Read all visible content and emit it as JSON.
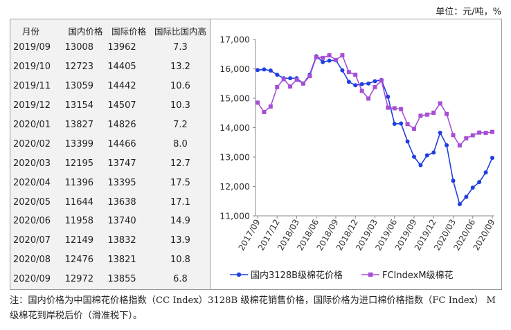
{
  "unit_label": "单位：元/吨，%",
  "table": {
    "headers": [
      "月份",
      "国内价格",
      "国际价格",
      "国际比国内高"
    ],
    "rows": [
      [
        "2019/09",
        "13008",
        "13962",
        "7.3"
      ],
      [
        "2019/10",
        "12723",
        "14405",
        "13.2"
      ],
      [
        "2019/11",
        "13059",
        "14442",
        "10.6"
      ],
      [
        "2019/12",
        "13154",
        "14507",
        "10.3"
      ],
      [
        "2020/01",
        "13827",
        "14826",
        "7.2"
      ],
      [
        "2020/02",
        "13399",
        "14466",
        "8.0"
      ],
      [
        "2020/03",
        "12195",
        "13747",
        "12.7"
      ],
      [
        "2020/04",
        "11396",
        "13395",
        "17.5"
      ],
      [
        "2020/05",
        "11644",
        "13638",
        "17.1"
      ],
      [
        "2020/06",
        "11958",
        "13740",
        "14.9"
      ],
      [
        "2020/07",
        "12149",
        "13832",
        "13.9"
      ],
      [
        "2020/08",
        "12476",
        "13821",
        "10.8"
      ],
      [
        "2020/09",
        "12972",
        "13855",
        "6.8"
      ]
    ]
  },
  "chart_data": {
    "type": "line",
    "xlabel": "",
    "ylabel": "",
    "ylim": [
      11000,
      17000
    ],
    "yticks": [
      "11,000",
      "12,000",
      "13,000",
      "14,000",
      "15,000",
      "16,000",
      "17,000"
    ],
    "x": [
      "2017/09",
      "2017/10",
      "2017/11",
      "2017/12",
      "2018/01",
      "2018/02",
      "2018/03",
      "2018/04",
      "2018/05",
      "2018/06",
      "2018/07",
      "2018/08",
      "2018/09",
      "2018/10",
      "2018/11",
      "2018/12",
      "2019/01",
      "2019/02",
      "2019/03",
      "2019/04",
      "2019/05",
      "2019/06",
      "2019/07",
      "2019/08",
      "2019/09",
      "2019/10",
      "2019/11",
      "2019/12",
      "2020/01",
      "2020/02",
      "2020/03",
      "2020/04",
      "2020/05",
      "2020/06",
      "2020/07",
      "2020/08",
      "2020/09"
    ],
    "xtick_labels": [
      "2017/09",
      "2017/12",
      "2018/03",
      "2018/06",
      "2018/09",
      "2018/12",
      "2019/03",
      "2019/06",
      "2019/09",
      "2019/12",
      "2020/03",
      "2020/06",
      "2020/09"
    ],
    "grid": false,
    "legend_position": "bottom",
    "series": [
      {
        "name": "国内3128B级棉花价格",
        "color": "#1f3fe0",
        "marker": "circle",
        "values": [
          15960,
          15980,
          15940,
          15800,
          15680,
          15680,
          15680,
          15500,
          15800,
          16430,
          16230,
          16280,
          16290,
          15950,
          15560,
          15440,
          15480,
          15500,
          15580,
          15620,
          15050,
          14130,
          14140,
          13530,
          13008,
          12723,
          13059,
          13154,
          13827,
          13399,
          12195,
          11396,
          11644,
          11958,
          12149,
          12476,
          12972
        ]
      },
      {
        "name": "FCIndexM级棉花",
        "color": "#a64fd6",
        "marker": "square",
        "values": [
          14850,
          14530,
          14720,
          15380,
          15650,
          15400,
          15630,
          15500,
          15750,
          16400,
          16370,
          16460,
          16300,
          16460,
          15890,
          15800,
          15250,
          14990,
          15380,
          15600,
          14680,
          14660,
          14630,
          14120,
          13962,
          14405,
          14442,
          14507,
          14826,
          14466,
          13747,
          13395,
          13638,
          13740,
          13832,
          13821,
          13855
        ]
      }
    ]
  },
  "note": "注：国内价格为中国棉花价格指数（CC Index）3128B 级棉花销售价格，国际价格为进口棉价格指数（FC Index） M 级棉花到岸税后价（滑准税下）。"
}
